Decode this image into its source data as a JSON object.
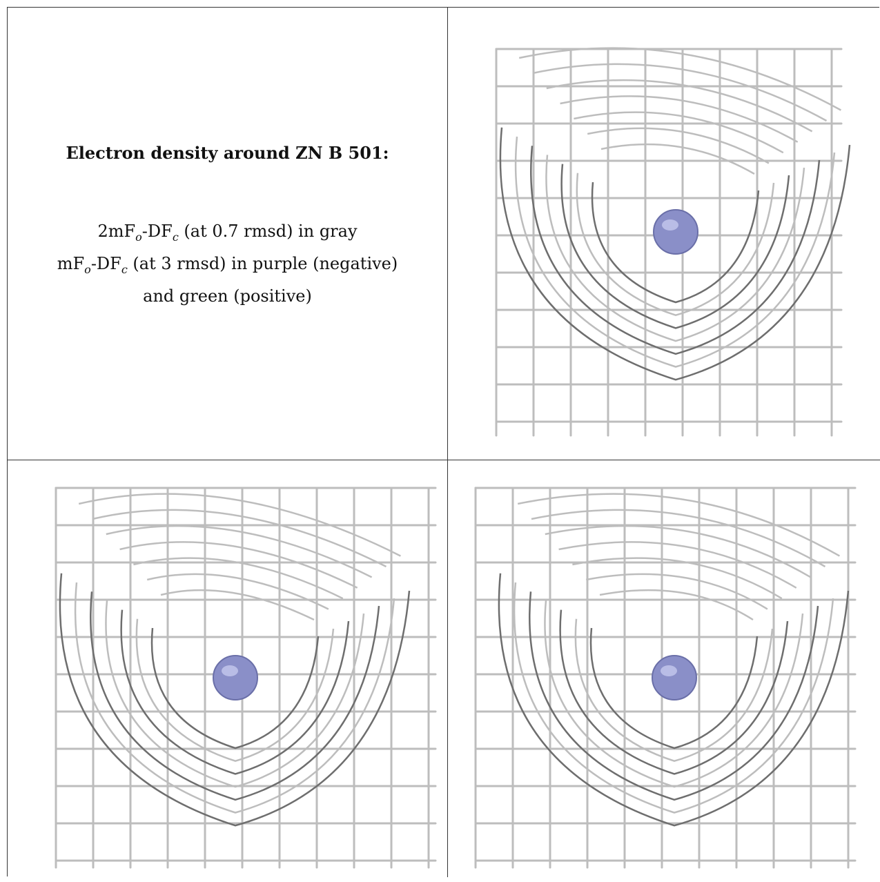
{
  "title": "Electron density around ZN B 501:",
  "legend": {
    "line1_prefix": "2mF",
    "line1_sub1": "o",
    "line1_mid": "-DF",
    "line1_sub2": "c",
    "line1_suffix": " (at 0.7 rmsd) in gray",
    "line2_prefix": "mF",
    "line2_sub1": "o",
    "line2_mid": "-DF",
    "line2_sub2": "c",
    "line2_suffix": " (at 3 rmsd) in purple (negative)",
    "line3": "and green (positive)"
  },
  "colors": {
    "mesh": "#bdbdbd",
    "mesh_dark": "#6e6e6e",
    "atom": "#8a8fc8",
    "border": "#333333"
  },
  "views": [
    {
      "name": "view-top-right",
      "atom_label": "ZN B 501"
    },
    {
      "name": "view-bottom-left",
      "atom_label": "ZN B 501"
    },
    {
      "name": "view-bottom-right",
      "atom_label": "ZN B 501"
    }
  ]
}
